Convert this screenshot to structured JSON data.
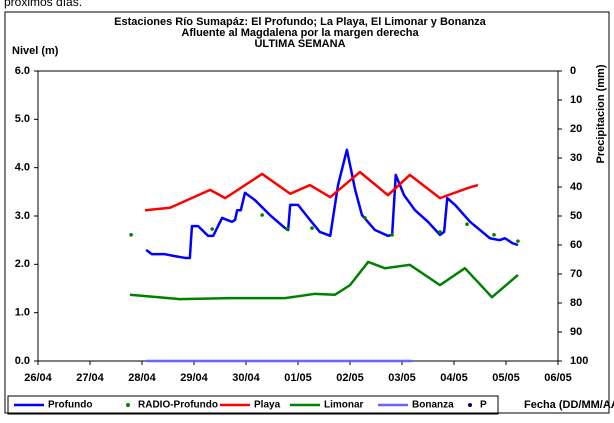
{
  "caption": "próximos días.",
  "chart_data": {
    "type": "line",
    "title": "Estaciones Río Sumapáz: El Profundo; La Playa, El Limonar y Bonanza",
    "subtitle": "Afluente al Magdalena por la margen derecha",
    "subtitle2": "ULTIMA SEMANA",
    "ylabel": "Nivel (m)",
    "y2label": "Precipitacion (mm)",
    "xlabel": "Fecha (DD/MM/AA)",
    "xlim": [
      0,
      10
    ],
    "xticks": [
      {
        "value": 0,
        "label": "26/04"
      },
      {
        "value": 1,
        "label": "27/04"
      },
      {
        "value": 2,
        "label": "28/04"
      },
      {
        "value": 3,
        "label": "29/04"
      },
      {
        "value": 4,
        "label": "30/04"
      },
      {
        "value": 5,
        "label": "01/05"
      },
      {
        "value": 6,
        "label": "02/05"
      },
      {
        "value": 7,
        "label": "03/05"
      },
      {
        "value": 8,
        "label": "04/05"
      },
      {
        "value": 9,
        "label": "05/05"
      },
      {
        "value": 10,
        "label": "06/05"
      }
    ],
    "ylim": [
      0,
      6
    ],
    "yticks": [
      {
        "value": 0,
        "label": "0.0"
      },
      {
        "value": 1,
        "label": "1.0"
      },
      {
        "value": 2,
        "label": "2.0"
      },
      {
        "value": 3,
        "label": "3.0"
      },
      {
        "value": 4,
        "label": "4.0"
      },
      {
        "value": 5,
        "label": "5.0"
      },
      {
        "value": 6,
        "label": "6.0"
      }
    ],
    "y2lim": [
      100,
      0
    ],
    "y2ticks": [
      0,
      10,
      20,
      30,
      40,
      50,
      60,
      70,
      80,
      90,
      100
    ],
    "grid": false,
    "legend": "bottom",
    "series": [
      {
        "name": "Profundo",
        "color": "#0000ff",
        "kind": "line",
        "x": [
          2.08,
          2.19,
          2.44,
          2.63,
          2.85,
          2.92,
          2.96,
          3.08,
          3.27,
          3.37,
          3.54,
          3.73,
          3.79,
          3.83,
          3.9,
          3.98,
          4.17,
          4.46,
          4.75,
          4.81,
          4.85,
          5.0,
          5.23,
          5.42,
          5.62,
          5.77,
          5.94,
          6.1,
          6.23,
          6.48,
          6.73,
          6.81,
          6.88,
          7.04,
          7.25,
          7.5,
          7.73,
          7.81,
          7.87,
          8.02,
          8.31,
          8.69,
          8.88,
          8.98,
          9.12,
          9.23
        ],
        "values": [
          2.3,
          2.21,
          2.21,
          2.17,
          2.13,
          2.13,
          2.79,
          2.79,
          2.59,
          2.59,
          2.96,
          2.88,
          2.92,
          3.12,
          3.12,
          3.48,
          3.33,
          3.02,
          2.75,
          2.71,
          3.23,
          3.23,
          2.92,
          2.67,
          2.59,
          3.64,
          4.37,
          3.54,
          3.02,
          2.71,
          2.59,
          2.61,
          3.85,
          3.43,
          3.12,
          2.88,
          2.61,
          2.67,
          3.37,
          3.23,
          2.88,
          2.54,
          2.5,
          2.54,
          2.44,
          2.4
        ]
      },
      {
        "name": "RADIO-Profundo",
        "color": "#008000",
        "kind": "dots",
        "x": [
          1.79,
          3.35,
          4.31,
          4.79,
          5.27,
          6.29,
          6.81,
          7.73,
          8.25,
          8.77,
          9.23
        ],
        "values": [
          2.61,
          2.73,
          3.02,
          2.73,
          2.75,
          2.96,
          2.61,
          2.67,
          2.83,
          2.61,
          2.48
        ]
      },
      {
        "name": "Playa",
        "color": "#ff0000",
        "kind": "line",
        "x": [
          2.06,
          2.54,
          3.31,
          3.6,
          4.31,
          4.85,
          5.23,
          5.62,
          6.19,
          6.73,
          7.15,
          7.73,
          8.27,
          8.46
        ],
        "values": [
          3.12,
          3.17,
          3.54,
          3.37,
          3.87,
          3.46,
          3.64,
          3.39,
          3.91,
          3.43,
          3.85,
          3.37,
          3.58,
          3.64
        ]
      },
      {
        "name": "Limonar",
        "color": "#008000",
        "kind": "line",
        "x": [
          1.77,
          2.73,
          3.69,
          4.75,
          5.33,
          5.71,
          6.0,
          6.35,
          6.67,
          7.15,
          7.73,
          8.21,
          8.73,
          9.23
        ],
        "values": [
          1.37,
          1.28,
          1.3,
          1.3,
          1.39,
          1.37,
          1.57,
          2.05,
          1.92,
          1.99,
          1.57,
          1.92,
          1.32,
          1.78
        ]
      },
      {
        "name": "Bonanza",
        "color": "#6666ff",
        "kind": "line",
        "x": [
          2.08,
          7.2
        ],
        "values": [
          0,
          0
        ]
      },
      {
        "name": "P",
        "color": "#000080",
        "kind": "dots",
        "axis": "y2",
        "x": [],
        "values": []
      }
    ]
  }
}
